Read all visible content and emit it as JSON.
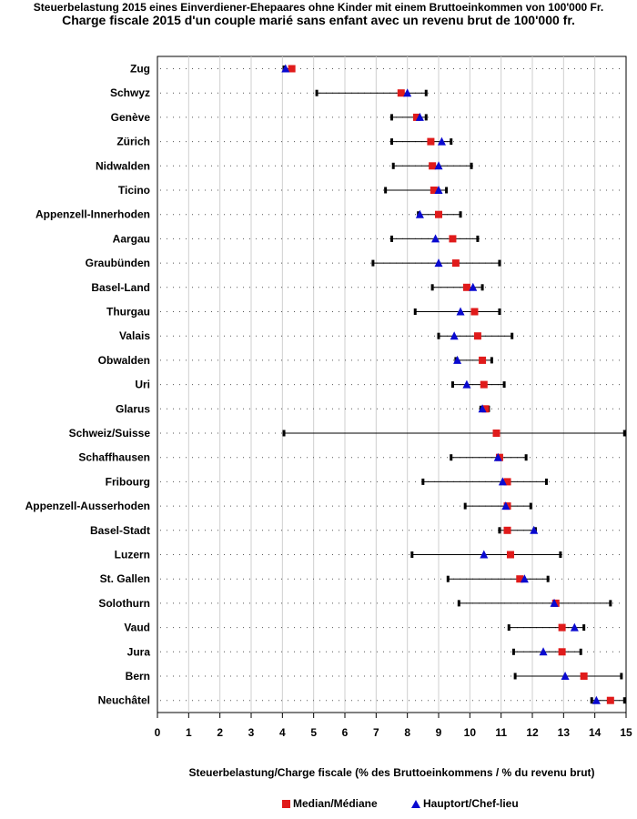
{
  "titles": {
    "de": "Steuerbelastung 2015 eines Einverdiener-Ehepaares ohne Kinder mit einem Bruttoeinkommen von 100'000 Fr.",
    "fr": "Charge fiscale 2015 d'un couple marié sans enfant avec un revenu brut de 100'000 fr."
  },
  "legend": {
    "median": "Median/Médiane",
    "capital": "Hauptort/Chef-lieu"
  },
  "colors": {
    "median": "#e01b1b",
    "capital": "#0a0ad0",
    "range": "#000000",
    "dots": "#555555"
  },
  "chart_data": {
    "type": "dot-range",
    "title": "Charge fiscale 2015 d'un couple marié sans enfant avec un revenu brut de 100'000 fr.",
    "xlabel": "Steuerbelastung/Charge fiscale (% des Bruttoeinkommens / % du revenu brut)",
    "xlim": [
      0,
      15
    ],
    "xticks": [
      0,
      1,
      2,
      3,
      4,
      5,
      6,
      7,
      8,
      9,
      10,
      11,
      12,
      13,
      14,
      15
    ],
    "grid": true,
    "legend_position": "bottom",
    "rows": [
      {
        "name": "Zug",
        "min": 4.05,
        "max": 4.35,
        "median": 4.3,
        "capital": 4.1
      },
      {
        "name": "Schwyz",
        "min": 5.1,
        "max": 8.6,
        "median": 7.8,
        "capital": 8.0
      },
      {
        "name": "Genève",
        "min": 7.5,
        "max": 8.6,
        "median": 8.3,
        "capital": 8.4
      },
      {
        "name": "Zürich",
        "min": 7.5,
        "max": 9.4,
        "median": 8.75,
        "capital": 9.1
      },
      {
        "name": "Nidwalden",
        "min": 7.55,
        "max": 10.05,
        "median": 8.8,
        "capital": 9.0
      },
      {
        "name": "Ticino",
        "min": 7.3,
        "max": 9.25,
        "median": 8.85,
        "capital": 9.0
      },
      {
        "name": "Appenzell-Innerhoden",
        "min": 8.35,
        "max": 9.7,
        "median": 9.0,
        "capital": 8.4
      },
      {
        "name": "Aargau",
        "min": 7.5,
        "max": 10.25,
        "median": 9.45,
        "capital": 8.9
      },
      {
        "name": "Graubünden",
        "min": 6.9,
        "max": 10.95,
        "median": 9.55,
        "capital": 9.0
      },
      {
        "name": "Basel-Land",
        "min": 8.8,
        "max": 10.4,
        "median": 9.9,
        "capital": 10.1
      },
      {
        "name": "Thurgau",
        "min": 8.25,
        "max": 10.95,
        "median": 10.15,
        "capital": 9.7
      },
      {
        "name": "Valais",
        "min": 9.0,
        "max": 11.35,
        "median": 10.25,
        "capital": 9.5
      },
      {
        "name": "Obwalden",
        "min": 9.55,
        "max": 10.7,
        "median": 10.4,
        "capital": 9.6
      },
      {
        "name": "Uri",
        "min": 9.45,
        "max": 11.1,
        "median": 10.45,
        "capital": 9.9
      },
      {
        "name": "Glarus",
        "min": 10.35,
        "max": 10.6,
        "median": 10.5,
        "capital": 10.4
      },
      {
        "name": "Schweiz/Suisse",
        "min": 4.05,
        "max": 14.95,
        "median": 10.85,
        "capital": null
      },
      {
        "name": "Schaffhausen",
        "min": 9.4,
        "max": 11.8,
        "median": 10.95,
        "capital": 10.9
      },
      {
        "name": "Fribourg",
        "min": 8.5,
        "max": 12.45,
        "median": 11.2,
        "capital": 11.05
      },
      {
        "name": "Appenzell-Ausserhoden",
        "min": 9.85,
        "max": 11.95,
        "median": 11.2,
        "capital": 11.15
      },
      {
        "name": "Basel-Stadt",
        "min": 10.95,
        "max": 12.1,
        "median": 11.2,
        "capital": 12.05
      },
      {
        "name": "Luzern",
        "min": 8.15,
        "max": 12.9,
        "median": 11.3,
        "capital": 10.45
      },
      {
        "name": "St. Gallen",
        "min": 9.3,
        "max": 12.5,
        "median": 11.6,
        "capital": 11.75
      },
      {
        "name": "Solothurn",
        "min": 9.65,
        "max": 14.5,
        "median": 12.75,
        "capital": 12.7
      },
      {
        "name": "Vaud",
        "min": 11.25,
        "max": 13.65,
        "median": 12.95,
        "capital": 13.35
      },
      {
        "name": "Jura",
        "min": 11.4,
        "max": 13.55,
        "median": 12.95,
        "capital": 12.35
      },
      {
        "name": "Bern",
        "min": 11.45,
        "max": 14.85,
        "median": 13.65,
        "capital": 13.05
      },
      {
        "name": "Neuchâtel",
        "min": 13.9,
        "max": 14.95,
        "median": 14.5,
        "capital": 14.05
      }
    ]
  }
}
